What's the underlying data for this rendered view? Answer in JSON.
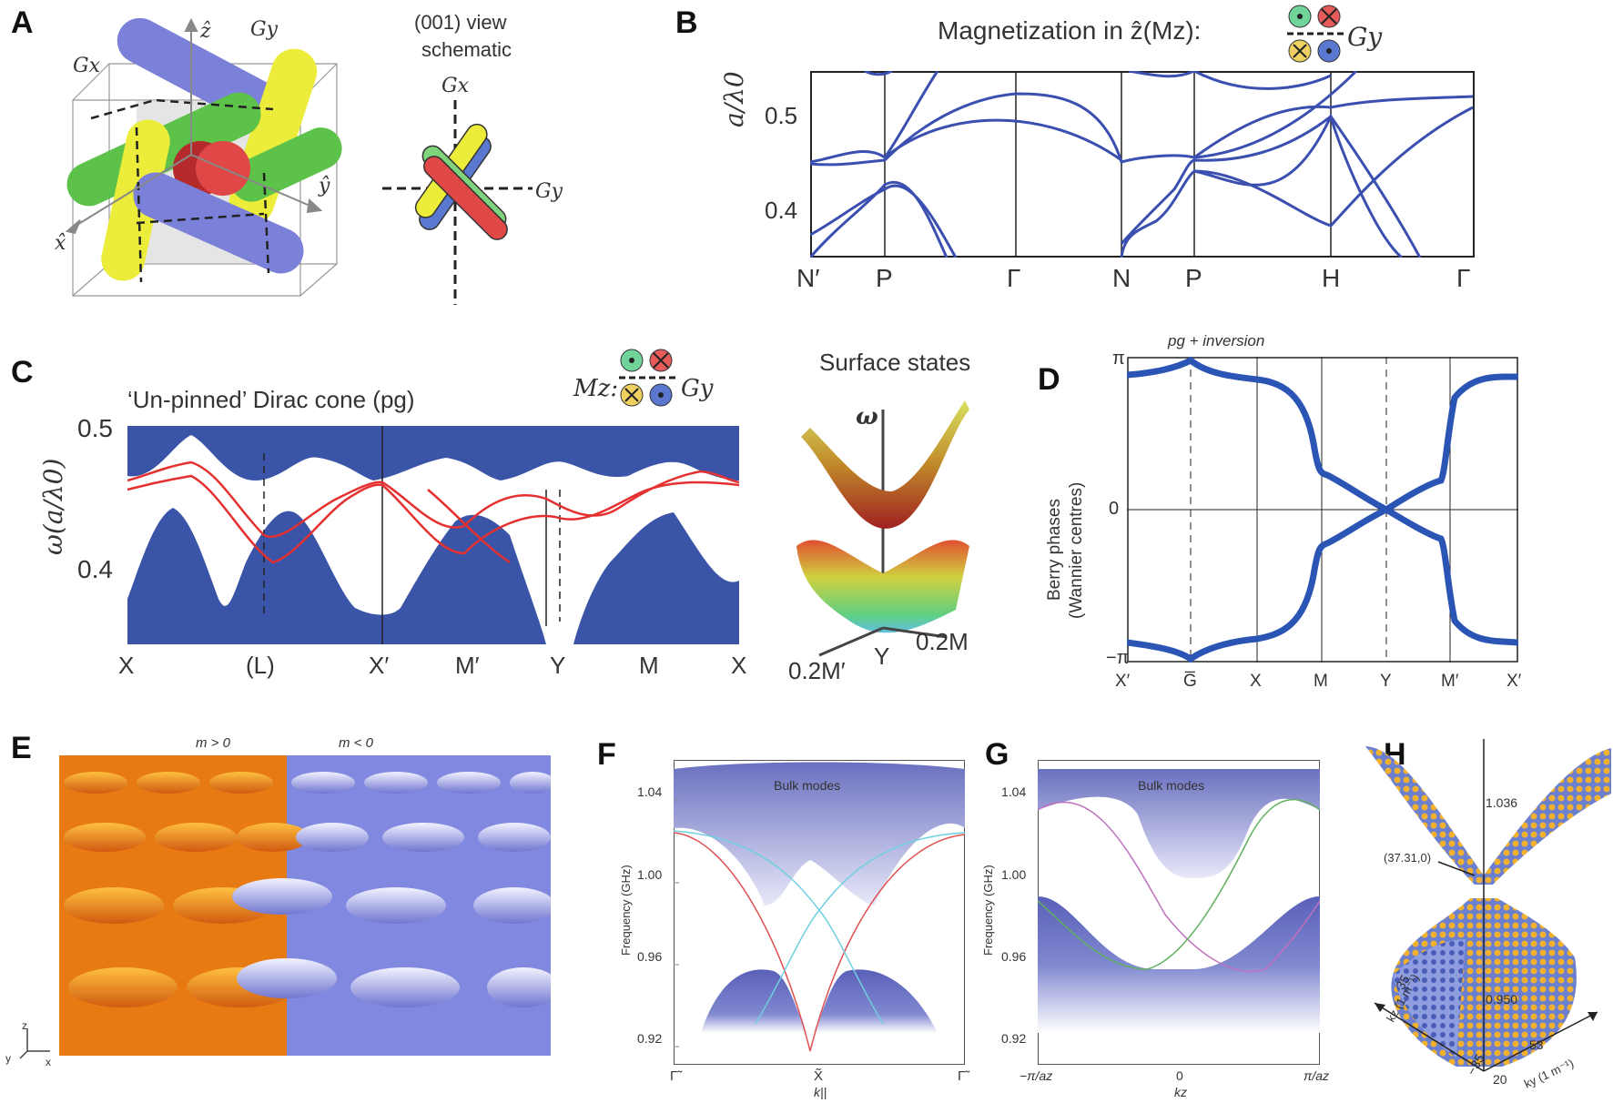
{
  "panels": {
    "A": {
      "letter": "A",
      "axes": {
        "z": "ẑ",
        "y": "ŷ",
        "x": "x̂"
      },
      "gx": "Gx",
      "gy": "Gy",
      "schematic_title_1": "(001) view",
      "schematic_title_2": "schematic",
      "schematic_gx": "Gx",
      "schematic_gy": "Gy",
      "colors": {
        "blue": "#7b80d8",
        "green": "#5cc24a",
        "yellow": "#ecec3a",
        "red": "#e04848"
      }
    },
    "B": {
      "letter": "B",
      "title": "Magnetization in ẑ(Mz):",
      "legend_gy": "Gy",
      "ylabel": "a/λ0",
      "yticks": [
        "0.5",
        "0.4"
      ],
      "xticks": [
        "N′",
        "P",
        "Γ",
        "N",
        "P",
        "H",
        "Γ"
      ]
    },
    "C": {
      "letter": "C",
      "title": "‘Un-pinned’ Dirac cone (pg)",
      "mz_label": "Mz:",
      "legend_gy": "Gy",
      "ylabel": "ω(a/λ0)",
      "yticks": [
        "0.5",
        "0.4"
      ],
      "xticks": [
        "X",
        "(L)",
        "X′",
        "M′",
        "Y",
        "M",
        "X"
      ],
      "surface_title": "Surface states",
      "surface_omega": "ω",
      "surface_labels": [
        "0.2M′",
        "Y",
        "0.2M"
      ],
      "fill_color": "#3a55a8",
      "line_color": "#e53030"
    },
    "D": {
      "letter": "D",
      "title": "pg + inversion",
      "ylabel_1": "Berry phases",
      "ylabel_2": "(Wannier centres)",
      "yticks": [
        "π",
        "0",
        "−π"
      ],
      "xticks": [
        "X′",
        "G̅",
        "X",
        "M",
        "Y",
        "M′",
        "X′"
      ],
      "line_color": "#2b55b5"
    },
    "E": {
      "letter": "E",
      "m_pos": "m > 0",
      "m_neg": "m < 0",
      "axis_z": "z",
      "axis_y": "y",
      "axis_x": "x",
      "colors": {
        "orange": "#f08a1a",
        "blue": "#8e94e6"
      }
    },
    "F": {
      "letter": "F",
      "bulk": "Bulk modes",
      "ylabel": "Frequency (GHz)",
      "yticks": [
        "1.04",
        "1.00",
        "0.96",
        "0.92"
      ],
      "xticks": [
        "Γ̃",
        "X̃",
        "Γ̃"
      ],
      "xlabel": "k||"
    },
    "G": {
      "letter": "G",
      "bulk": "Bulk modes",
      "ylabel": "Frequency (GHz)",
      "yticks": [
        "1.04",
        "1.00",
        "0.96",
        "0.92"
      ],
      "xticks": [
        "−π/az",
        "0",
        "π/az"
      ],
      "xlabel": "kz"
    },
    "H": {
      "letter": "H",
      "val_top": "1.036",
      "val_bottom": "0.950",
      "point": "(37.31,0)",
      "kz_label": "kz (1 m⁻¹)",
      "ky_label": "ky (1 m⁻¹)",
      "kz_ticks": [
        "35",
        "−35"
      ],
      "ky_ticks": [
        "20",
        "53"
      ]
    }
  }
}
